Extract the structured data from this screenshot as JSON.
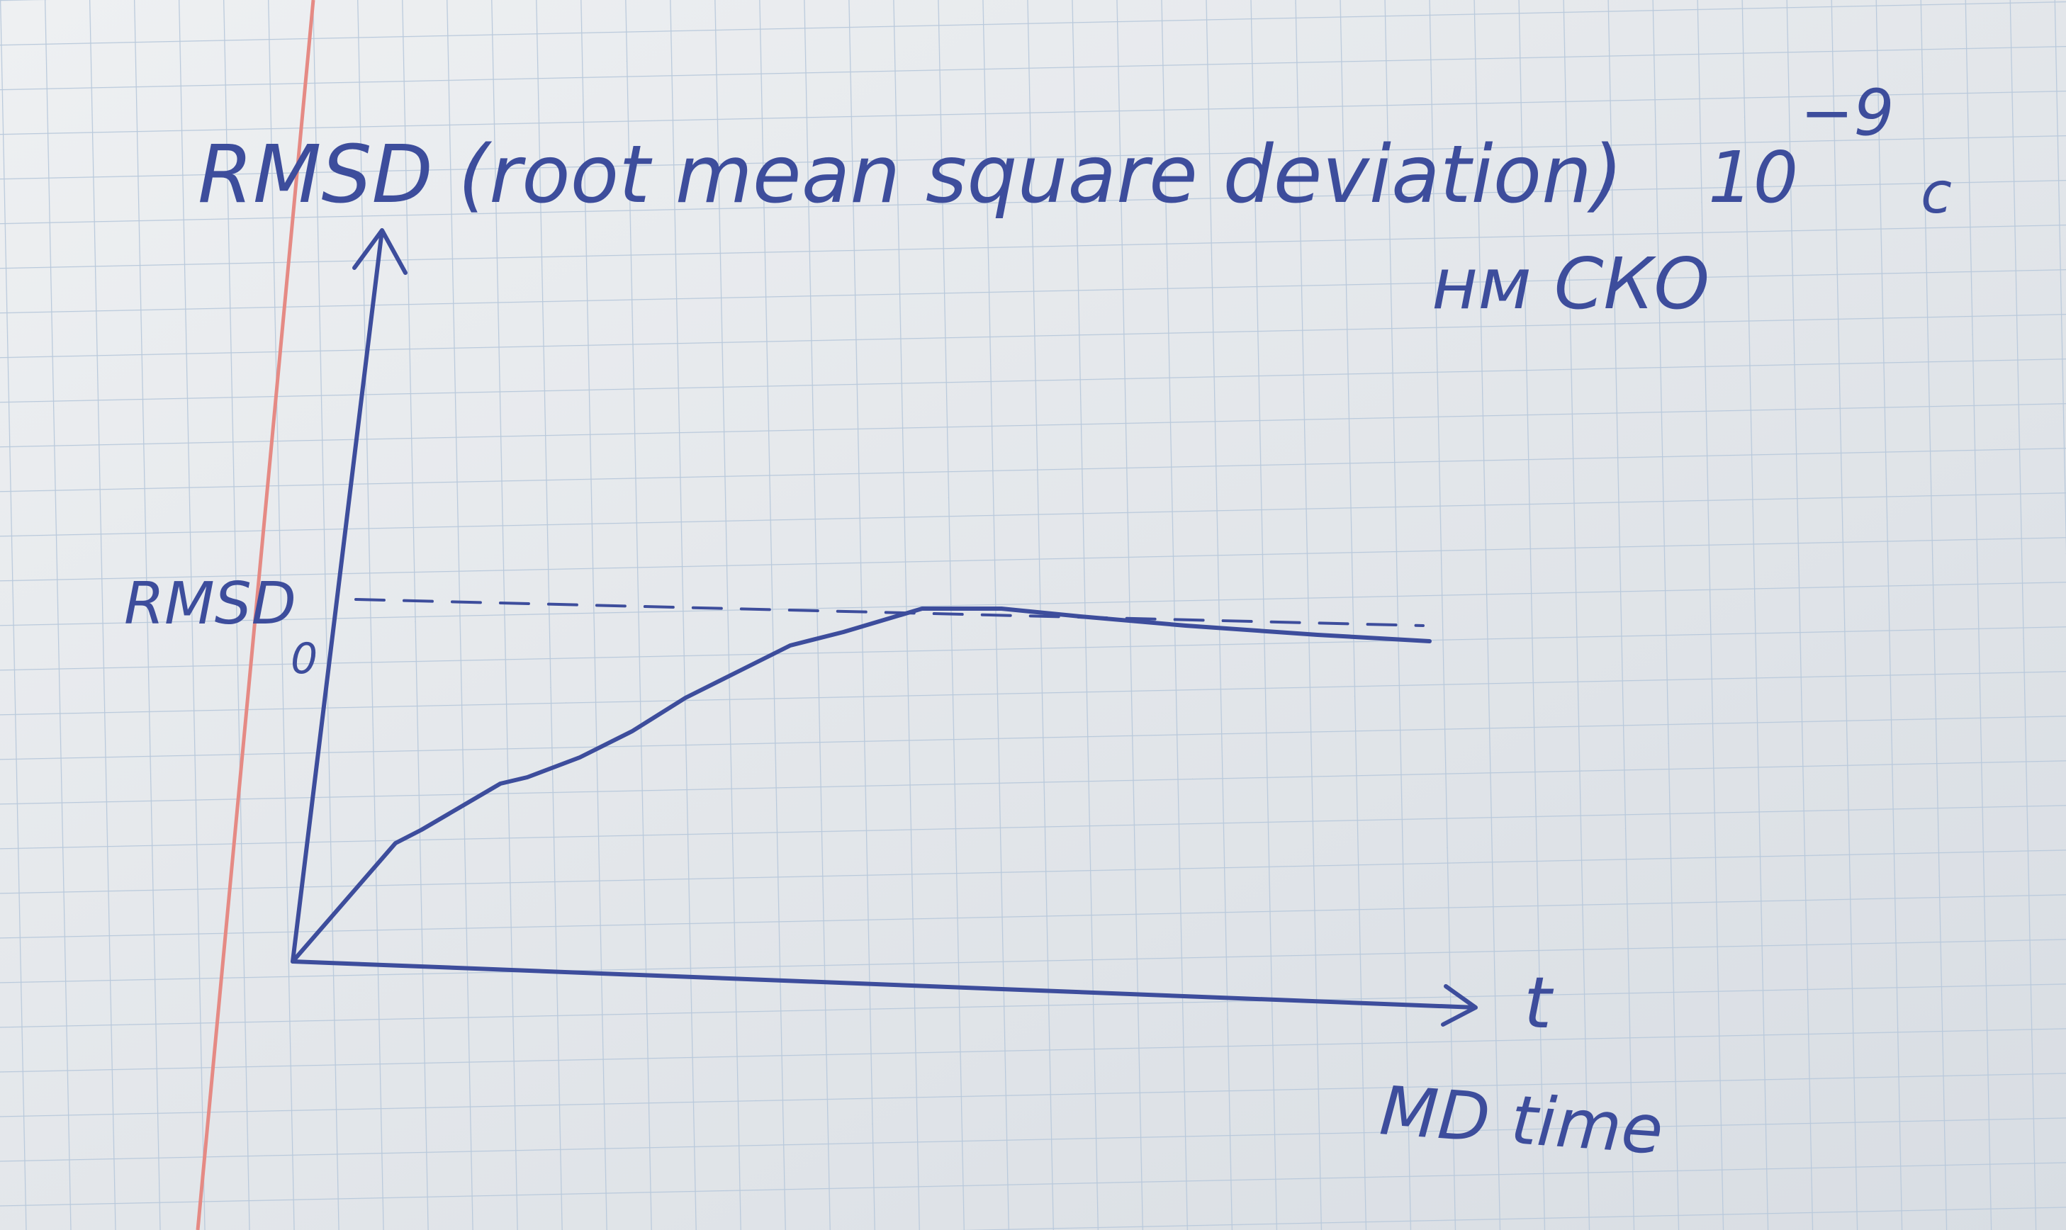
{
  "title": "RMSD (root mean square deviation)",
  "unit": {
    "base": "10",
    "exponent": "−9",
    "suffix": "c",
    "note": "нм СКО"
  },
  "axes": {
    "reference_label": "RMSD",
    "reference_subscript": "0",
    "x_symbol": "t",
    "x_label": "MD time"
  }
}
